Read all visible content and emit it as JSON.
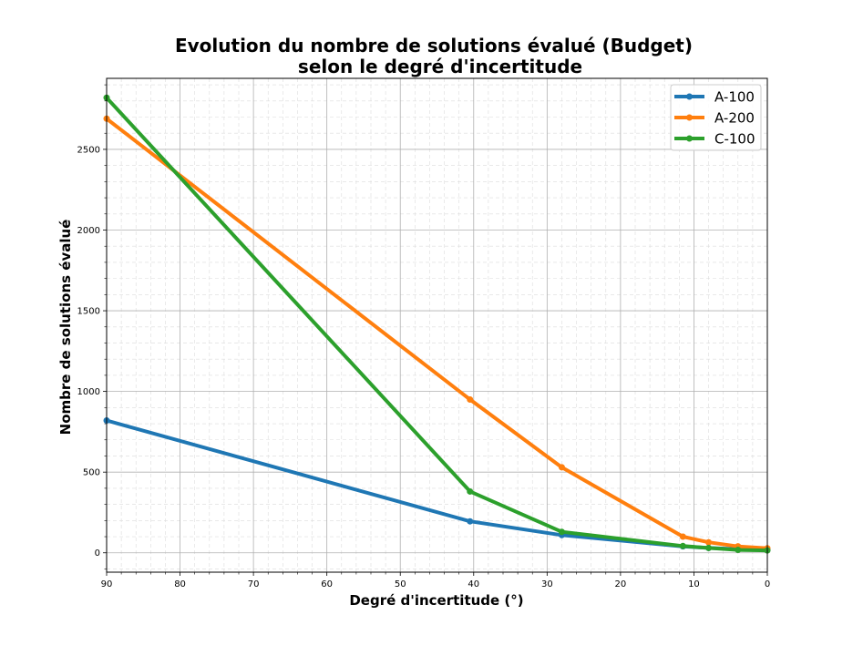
{
  "chart_data": {
    "type": "line",
    "title_line1": "Evolution du nombre de solutions évalué (Budget)",
    "title_line2": "selon  le degré d'incertitude",
    "xlabel": "Degré d'incertitude (°)",
    "ylabel": "Nombre de solutions évalué",
    "xlim": [
      90,
      0
    ],
    "ylim": [
      -120,
      2940
    ],
    "x_reversed": true,
    "xticks": [
      90,
      80,
      70,
      60,
      50,
      40,
      30,
      20,
      10,
      0
    ],
    "yticks": [
      0,
      500,
      1000,
      1500,
      2000,
      2500
    ],
    "grid": true,
    "legend_position": "top-right",
    "series": [
      {
        "name": "A-100",
        "color": "#1f77b4",
        "x": [
          90,
          40.5,
          28,
          11.5,
          8,
          4,
          0
        ],
        "y": [
          820,
          195,
          110,
          40,
          30,
          22,
          18
        ]
      },
      {
        "name": "A-200",
        "color": "#ff7f0e",
        "x": [
          90,
          40.5,
          28,
          11.5,
          8,
          4,
          0
        ],
        "y": [
          2690,
          950,
          530,
          100,
          65,
          40,
          28
        ]
      },
      {
        "name": "C-100",
        "color": "#2ca02c",
        "x": [
          90,
          40.5,
          28,
          11.5,
          8,
          4,
          0
        ],
        "y": [
          2820,
          380,
          130,
          42,
          30,
          18,
          15
        ]
      }
    ]
  }
}
